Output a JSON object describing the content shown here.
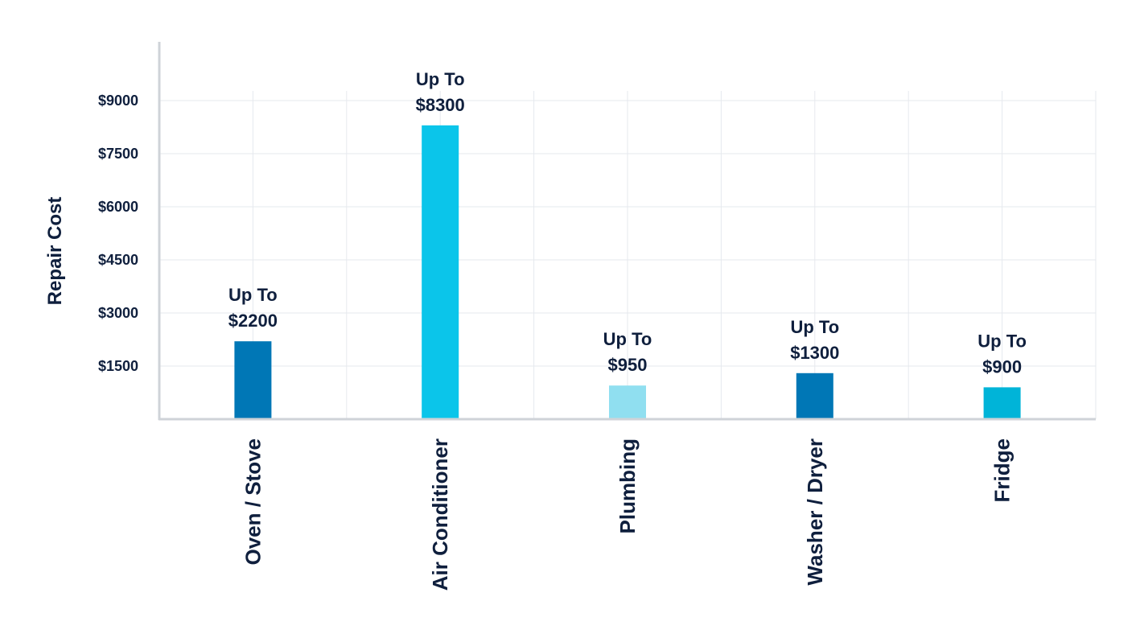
{
  "chart_data": {
    "type": "bar",
    "categories": [
      "Oven / Stove",
      "Air Conditioner",
      "Plumbing",
      "Washer / Dryer",
      "Fridge"
    ],
    "values": [
      2200,
      8300,
      950,
      1300,
      900
    ],
    "data_labels": [
      [
        "Up To",
        "$2200"
      ],
      [
        "Up To",
        "$8300"
      ],
      [
        "Up To",
        "$950"
      ],
      [
        "Up To",
        "$1300"
      ],
      [
        "Up To",
        "$900"
      ]
    ],
    "bar_colors": [
      "#0077b6",
      "#0bc5ea",
      "#90dff0",
      "#0077b6",
      "#00b4d8"
    ],
    "ylabel": "Repair Cost",
    "xlabel": "",
    "yticks": [
      1500,
      3000,
      4500,
      6000,
      7500,
      9000
    ],
    "ytick_labels": [
      "$1500",
      "$3000",
      "$4500",
      "$6000",
      "$7500",
      "$9000"
    ],
    "ylim": [
      0,
      10500
    ],
    "grid": true,
    "legend": "none"
  },
  "colors": {
    "text": "#0f1f3d",
    "grid": "#e6e9ee",
    "axis": "#cfd3d8"
  }
}
